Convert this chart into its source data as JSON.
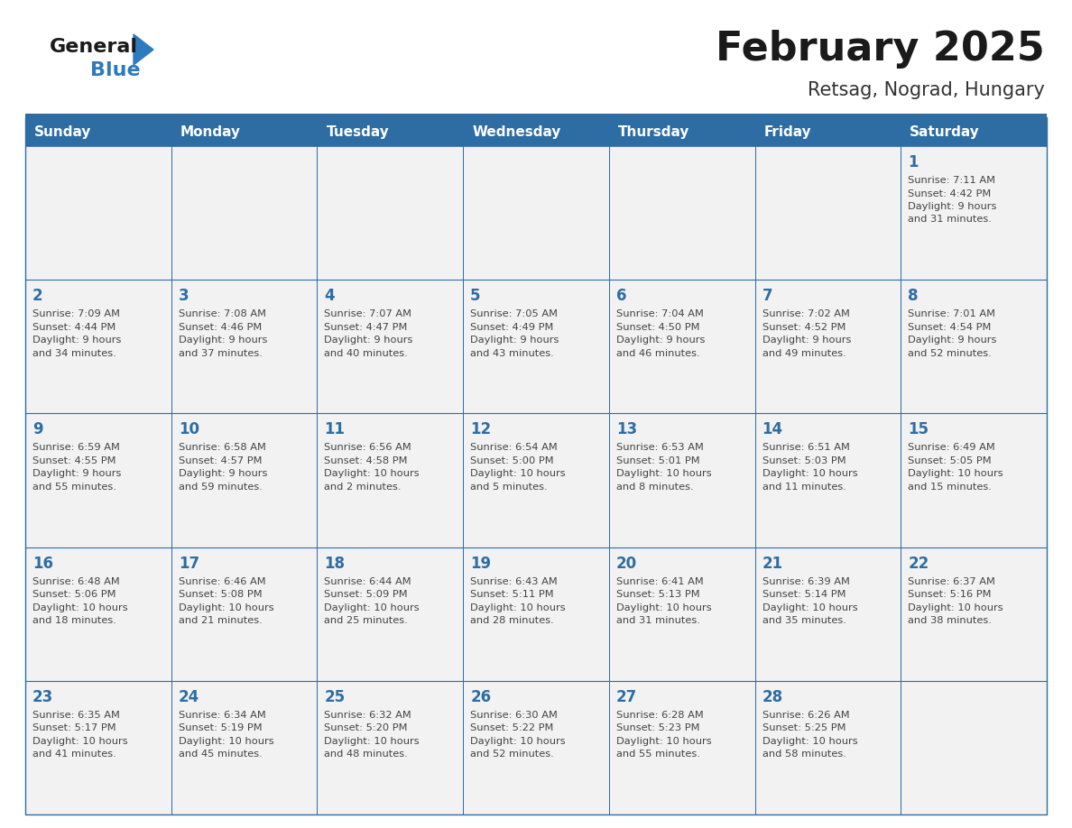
{
  "title": "February 2025",
  "subtitle": "Retsag, Nograd, Hungary",
  "days_of_week": [
    "Sunday",
    "Monday",
    "Tuesday",
    "Wednesday",
    "Thursday",
    "Friday",
    "Saturday"
  ],
  "header_bg": "#2e6da4",
  "header_text": "#ffffff",
  "cell_bg_light": "#f2f2f2",
  "cell_border": "#2e6da4",
  "day_number_color": "#2e6da4",
  "text_color": "#444444",
  "logo_general_color": "#1a1a1a",
  "logo_blue_color": "#2e7abf",
  "calendar_data": {
    "1": {
      "sunrise": "7:11 AM",
      "sunset": "4:42 PM",
      "daylight": "9 hours and 31 minutes."
    },
    "2": {
      "sunrise": "7:09 AM",
      "sunset": "4:44 PM",
      "daylight": "9 hours and 34 minutes."
    },
    "3": {
      "sunrise": "7:08 AM",
      "sunset": "4:46 PM",
      "daylight": "9 hours and 37 minutes."
    },
    "4": {
      "sunrise": "7:07 AM",
      "sunset": "4:47 PM",
      "daylight": "9 hours and 40 minutes."
    },
    "5": {
      "sunrise": "7:05 AM",
      "sunset": "4:49 PM",
      "daylight": "9 hours and 43 minutes."
    },
    "6": {
      "sunrise": "7:04 AM",
      "sunset": "4:50 PM",
      "daylight": "9 hours and 46 minutes."
    },
    "7": {
      "sunrise": "7:02 AM",
      "sunset": "4:52 PM",
      "daylight": "9 hours and 49 minutes."
    },
    "8": {
      "sunrise": "7:01 AM",
      "sunset": "4:54 PM",
      "daylight": "9 hours and 52 minutes."
    },
    "9": {
      "sunrise": "6:59 AM",
      "sunset": "4:55 PM",
      "daylight": "9 hours and 55 minutes."
    },
    "10": {
      "sunrise": "6:58 AM",
      "sunset": "4:57 PM",
      "daylight": "9 hours and 59 minutes."
    },
    "11": {
      "sunrise": "6:56 AM",
      "sunset": "4:58 PM",
      "daylight": "10 hours and 2 minutes."
    },
    "12": {
      "sunrise": "6:54 AM",
      "sunset": "5:00 PM",
      "daylight": "10 hours and 5 minutes."
    },
    "13": {
      "sunrise": "6:53 AM",
      "sunset": "5:01 PM",
      "daylight": "10 hours and 8 minutes."
    },
    "14": {
      "sunrise": "6:51 AM",
      "sunset": "5:03 PM",
      "daylight": "10 hours and 11 minutes."
    },
    "15": {
      "sunrise": "6:49 AM",
      "sunset": "5:05 PM",
      "daylight": "10 hours and 15 minutes."
    },
    "16": {
      "sunrise": "6:48 AM",
      "sunset": "5:06 PM",
      "daylight": "10 hours and 18 minutes."
    },
    "17": {
      "sunrise": "6:46 AM",
      "sunset": "5:08 PM",
      "daylight": "10 hours and 21 minutes."
    },
    "18": {
      "sunrise": "6:44 AM",
      "sunset": "5:09 PM",
      "daylight": "10 hours and 25 minutes."
    },
    "19": {
      "sunrise": "6:43 AM",
      "sunset": "5:11 PM",
      "daylight": "10 hours and 28 minutes."
    },
    "20": {
      "sunrise": "6:41 AM",
      "sunset": "5:13 PM",
      "daylight": "10 hours and 31 minutes."
    },
    "21": {
      "sunrise": "6:39 AM",
      "sunset": "5:14 PM",
      "daylight": "10 hours and 35 minutes."
    },
    "22": {
      "sunrise": "6:37 AM",
      "sunset": "5:16 PM",
      "daylight": "10 hours and 38 minutes."
    },
    "23": {
      "sunrise": "6:35 AM",
      "sunset": "5:17 PM",
      "daylight": "10 hours and 41 minutes."
    },
    "24": {
      "sunrise": "6:34 AM",
      "sunset": "5:19 PM",
      "daylight": "10 hours and 45 minutes."
    },
    "25": {
      "sunrise": "6:32 AM",
      "sunset": "5:20 PM",
      "daylight": "10 hours and 48 minutes."
    },
    "26": {
      "sunrise": "6:30 AM",
      "sunset": "5:22 PM",
      "daylight": "10 hours and 52 minutes."
    },
    "27": {
      "sunrise": "6:28 AM",
      "sunset": "5:23 PM",
      "daylight": "10 hours and 55 minutes."
    },
    "28": {
      "sunrise": "6:26 AM",
      "sunset": "5:25 PM",
      "daylight": "10 hours and 58 minutes."
    }
  },
  "weeks": [
    [
      null,
      null,
      null,
      null,
      null,
      null,
      1
    ],
    [
      2,
      3,
      4,
      5,
      6,
      7,
      8
    ],
    [
      9,
      10,
      11,
      12,
      13,
      14,
      15
    ],
    [
      16,
      17,
      18,
      19,
      20,
      21,
      22
    ],
    [
      23,
      24,
      25,
      26,
      27,
      28,
      null
    ]
  ]
}
